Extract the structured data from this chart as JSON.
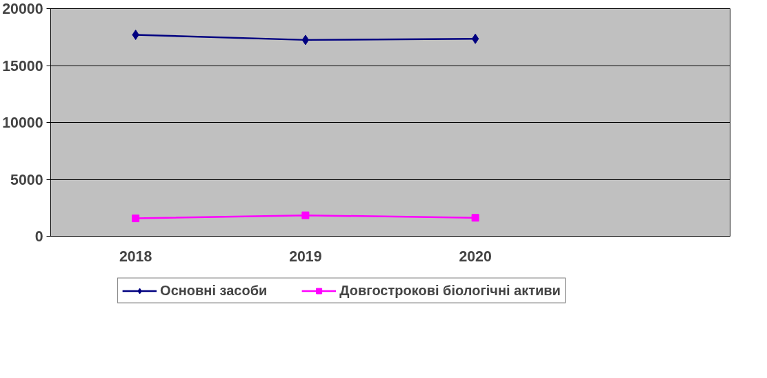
{
  "chart_data": {
    "type": "line",
    "categories": [
      "2018",
      "2019",
      "2020",
      null
    ],
    "series": [
      {
        "name": "Основні засоби",
        "color": "#000080",
        "marker": "diamond",
        "values": [
          17700,
          17250,
          17350,
          null
        ]
      },
      {
        "name": "Довгострокові біологічні активи",
        "color": "#ff00ff",
        "marker": "square",
        "values": [
          1570,
          1840,
          1620,
          null
        ]
      }
    ],
    "ylim": [
      0,
      20000
    ],
    "yticks": [
      0,
      5000,
      10000,
      15000,
      20000
    ],
    "grid": "y",
    "legend": "bottom",
    "line_style": "solid"
  }
}
